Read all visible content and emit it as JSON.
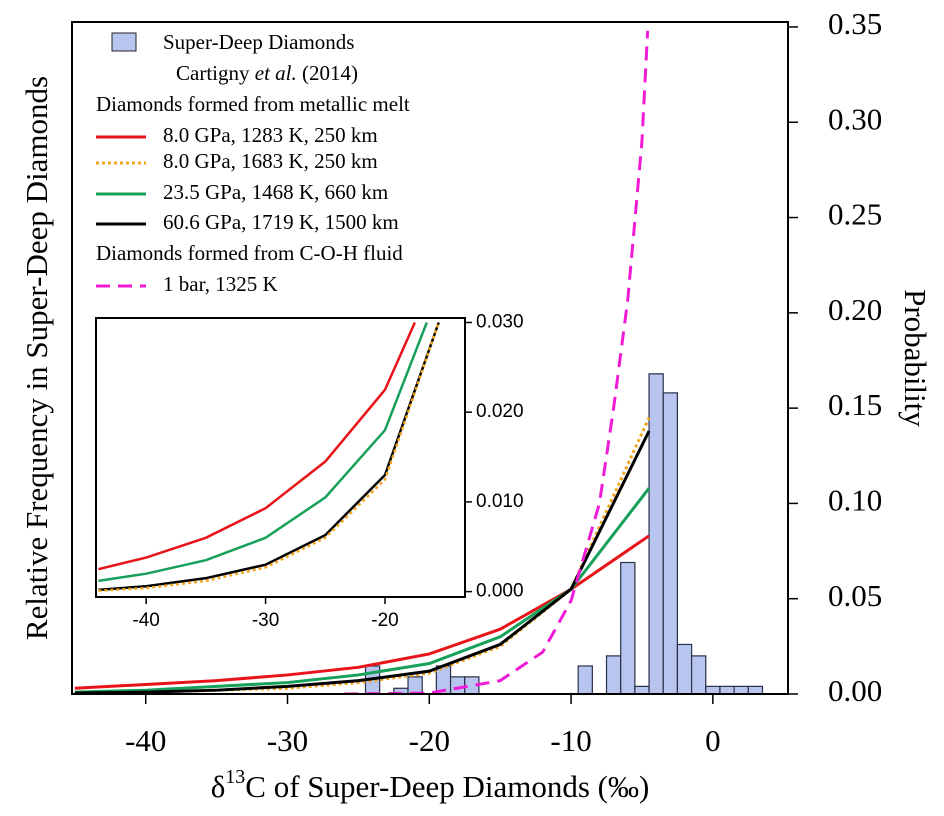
{
  "chart_data": [
    {
      "type": "histogram",
      "x_label_parts": [
        "δ",
        "13",
        "C of Super-Deep Diamonds (‰)"
      ],
      "y_label": "Relative Frequency in Super-Deep Diamonds",
      "y2_label": "Probability",
      "hist_name": "Super-Deep Diamonds",
      "hist_citation": [
        "Cartigny ",
        "et al.",
        " (2014)"
      ],
      "hist_color": "#b8c6ef",
      "bins": [
        -24.5,
        -23.5,
        -22.5,
        -21.5,
        -20.5,
        -19.5,
        -18.5,
        -17.5,
        -16.5,
        -15.5,
        -14.5,
        -13.5,
        -12.5,
        -11.5,
        -10.5,
        -9.5,
        -8.5,
        -7.5,
        -6.5,
        -5.5,
        -4.5,
        -3.5,
        -2.5,
        -1.5,
        -0.5,
        0.5,
        1.5,
        2.5,
        3.5
      ],
      "counts": [
        0.0147,
        0,
        0.003,
        0.009,
        0,
        0.0147,
        0.009,
        0.009,
        0,
        0,
        0,
        0,
        0,
        0,
        0,
        0.0147,
        0,
        0.02,
        0.069,
        0.004,
        0.168,
        0.158,
        0.026,
        0.02,
        0.004,
        0.004,
        0.004,
        0.004
      ],
      "legend_groups": [
        "Diamonds formed from metallic melt",
        "Diamonds formed from C-O-H fluid"
      ],
      "series": [
        {
          "name": "8.0 GPa, 1283 K, 250 km",
          "color": "#e8141a",
          "dash": "solid",
          "x": [
            -45,
            -40,
            -35,
            -30,
            -25,
            -20,
            -15,
            -10,
            -4.5
          ],
          "values": [
            0.003,
            0.005,
            0.007,
            0.01,
            0.014,
            0.021,
            0.034,
            0.055,
            0.083
          ]
        },
        {
          "name": "8.0 GPa, 1683 K, 250 km",
          "color": "#f2a51f",
          "dash": "dotted",
          "x": [
            -45,
            -40,
            -35,
            -30,
            -25,
            -20,
            -15,
            -10,
            -4.5
          ],
          "values": [
            0.0004,
            0.001,
            0.002,
            0.003,
            0.006,
            0.011,
            0.025,
            0.055,
            0.145
          ]
        },
        {
          "name": "23.5 GPa, 1468 K, 660 km",
          "color": "#17a05a",
          "dash": "solid",
          "x": [
            -45,
            -40,
            -35,
            -30,
            -25,
            -20,
            -15,
            -10,
            -4.5
          ],
          "values": [
            0.001,
            0.002,
            0.004,
            0.006,
            0.01,
            0.016,
            0.03,
            0.055,
            0.108
          ]
        },
        {
          "name": "60.6 GPa, 1719 K, 1500 km",
          "color": "#000000",
          "dash": "solid",
          "x": [
            -45,
            -40,
            -35,
            -30,
            -25,
            -20,
            -15,
            -10,
            -4.5
          ],
          "values": [
            0.0005,
            0.001,
            0.002,
            0.004,
            0.007,
            0.012,
            0.026,
            0.055,
            0.138
          ]
        },
        {
          "name": "1 bar, 1325 K",
          "color": "#f01bd6",
          "dash": "dashed",
          "x": [
            -26,
            -20,
            -15,
            -12,
            -10,
            -8,
            -7,
            -6,
            -5,
            -4.6
          ],
          "values": [
            0,
            0.0005,
            0.007,
            0.022,
            0.049,
            0.1,
            0.15,
            0.207,
            0.29,
            0.348
          ]
        }
      ],
      "xlim": [
        -45.2,
        5.3
      ],
      "ylim": [
        0,
        0.3526
      ],
      "xticks": [
        -40,
        -30,
        -20,
        -10,
        0
      ],
      "yticks": [
        {
          "value": 0,
          "label": "0.00"
        },
        {
          "value": 0.05,
          "label": "0.05"
        },
        {
          "value": 0.1,
          "label": "0.10"
        },
        {
          "value": 0.15,
          "label": "0.15"
        },
        {
          "value": 0.2,
          "label": "0.20"
        },
        {
          "value": 0.25,
          "label": "0.25"
        },
        {
          "value": 0.3,
          "label": "0.30"
        },
        {
          "value": 0.35,
          "label": "0.35"
        }
      ]
    },
    {
      "type": "line",
      "series": [
        {
          "color": "#e8141a",
          "dash": "solid",
          "x": [
            -44,
            -40,
            -35,
            -30,
            -25,
            -20,
            -17.5
          ],
          "values": [
            0.0025,
            0.0038,
            0.006,
            0.0093,
            0.0145,
            0.0225,
            0.03
          ]
        },
        {
          "color": "#17a05a",
          "dash": "solid",
          "x": [
            -44,
            -40,
            -35,
            -30,
            -25,
            -20,
            -16.5
          ],
          "values": [
            0.0012,
            0.002,
            0.0035,
            0.006,
            0.0105,
            0.018,
            0.03
          ]
        },
        {
          "color": "#000000",
          "dash": "solid",
          "x": [
            -44,
            -40,
            -35,
            -30,
            -25,
            -20,
            -15.5
          ],
          "values": [
            0.0002,
            0.0006,
            0.0015,
            0.003,
            0.0063,
            0.013,
            0.03
          ]
        },
        {
          "color": "#f2a51f",
          "dash": "dotted",
          "x": [
            -44,
            -40,
            -35,
            -30,
            -25,
            -20,
            -15.5
          ],
          "values": [
            0.0001,
            0.0004,
            0.0012,
            0.0027,
            0.006,
            0.0125,
            0.03
          ]
        }
      ],
      "xlim": [
        -44.2,
        -13.3
      ],
      "ylim": [
        -0.0006,
        0.0305
      ],
      "xticks": [
        -40,
        -30,
        -20
      ],
      "yticks": [
        {
          "value": 0,
          "label": "0.000"
        },
        {
          "value": 0.01,
          "label": "0.010"
        },
        {
          "value": 0.02,
          "label": "0.020"
        },
        {
          "value": 0.03,
          "label": "0.030"
        }
      ]
    }
  ]
}
